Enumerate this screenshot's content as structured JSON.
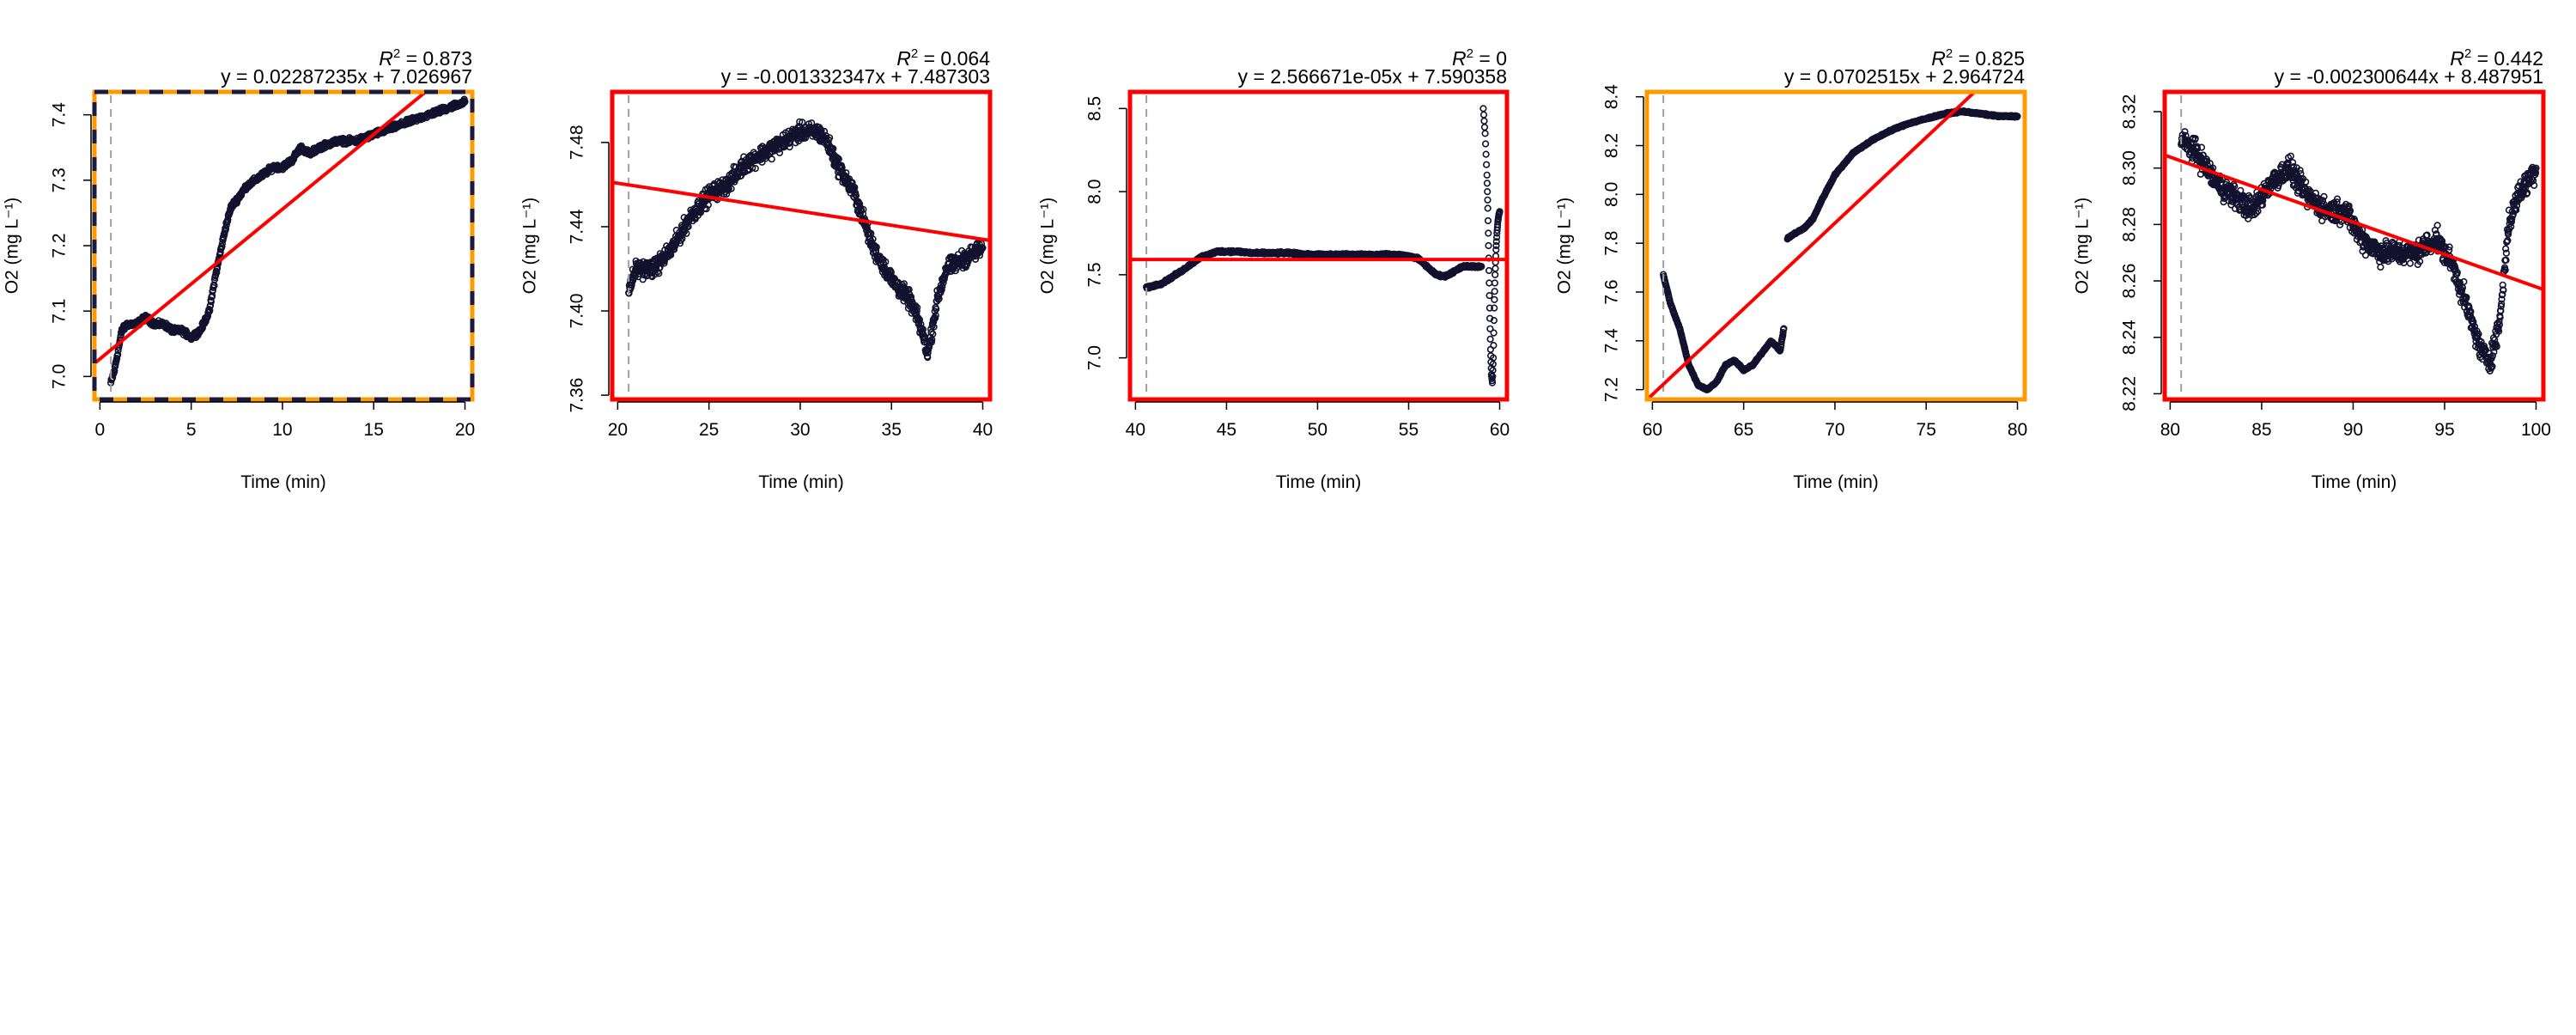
{
  "chart_data": [
    {
      "type": "scatter",
      "r2_label": "R",
      "r2_value": "= 0.873",
      "equation": "y = 0.02287235x + 7.026967",
      "xlabel": "Time (min)",
      "ylabel": "O2 (mg L⁻¹)",
      "xlim": [
        -0.3,
        20.4
      ],
      "ylim": [
        6.965,
        7.435
      ],
      "xticks": [
        0,
        5,
        10,
        15,
        20
      ],
      "yticks": [
        7.0,
        7.1,
        7.2,
        7.3,
        7.4
      ],
      "ytick_labels": [
        "7.0",
        "7.1",
        "7.2",
        "7.3",
        "7.4"
      ],
      "vline_x": 0.6,
      "frame_color": "#ff9900",
      "frame_style": "dashed",
      "fit": {
        "slope": 0.02287235,
        "intercept": 7.026967,
        "color": "#ff0000"
      },
      "series": [
        {
          "x": [
            0.6,
            0.8,
            1.0,
            1.2,
            1.5,
            2.0,
            2.5,
            3.0,
            3.5,
            4.0,
            4.5,
            5.0,
            5.5,
            6.0,
            6.3,
            6.6,
            6.9,
            7.2,
            7.5,
            8.0,
            8.5,
            9.0,
            9.5,
            10.0,
            10.5,
            11.0,
            11.5,
            12.0,
            13.0,
            14.0,
            15.0,
            16.0,
            17.0,
            18.0,
            19.0,
            20.0
          ],
          "y": [
            6.99,
            7.01,
            7.04,
            7.07,
            7.08,
            7.08,
            7.09,
            7.08,
            7.08,
            7.07,
            7.07,
            7.06,
            7.07,
            7.1,
            7.15,
            7.19,
            7.23,
            7.26,
            7.27,
            7.29,
            7.3,
            7.31,
            7.32,
            7.32,
            7.33,
            7.35,
            7.34,
            7.35,
            7.36,
            7.36,
            7.37,
            7.38,
            7.39,
            7.4,
            7.41,
            7.42
          ],
          "noise": 0.006
        }
      ]
    },
    {
      "type": "scatter",
      "r2_label": "R",
      "r2_value": "= 0.064",
      "equation": "y = -0.001332347x + 7.487303",
      "xlabel": "Time (min)",
      "ylabel": "O2 (mg L⁻¹)",
      "xlim": [
        19.7,
        40.4
      ],
      "ylim": [
        7.358,
        7.504
      ],
      "xticks": [
        20,
        25,
        30,
        35,
        40
      ],
      "yticks": [
        7.36,
        7.4,
        7.44,
        7.48
      ],
      "ytick_labels": [
        "7.36",
        "7.40",
        "7.44",
        "7.48"
      ],
      "vline_x": 20.6,
      "frame_color": "#ff0000",
      "frame_style": "solid",
      "fit": {
        "slope": -0.001332347,
        "intercept": 7.487303,
        "color": "#ff0000"
      },
      "series": [
        {
          "x": [
            20.6,
            21.0,
            22.0,
            23.0,
            24.0,
            25.0,
            26.0,
            27.0,
            28.0,
            29.0,
            30.0,
            31.0,
            31.5,
            32.0,
            33.0,
            34.0,
            35.0,
            36.0,
            36.5,
            37.0,
            37.5,
            38.0,
            39.0,
            40.0
          ],
          "y": [
            7.41,
            7.42,
            7.42,
            7.43,
            7.445,
            7.455,
            7.46,
            7.47,
            7.475,
            7.48,
            7.485,
            7.485,
            7.48,
            7.47,
            7.455,
            7.43,
            7.415,
            7.405,
            7.395,
            7.38,
            7.405,
            7.42,
            7.425,
            7.43
          ],
          "noise": 0.006
        }
      ]
    },
    {
      "type": "scatter",
      "r2_label": "R",
      "r2_value": "= 0",
      "equation": "y = 2.566671e-05x + 7.590358",
      "xlabel": "Time (min)",
      "ylabel": "O2 (mg L⁻¹)",
      "xlim": [
        39.7,
        60.4
      ],
      "ylim": [
        6.75,
        8.6
      ],
      "xticks": [
        40,
        45,
        50,
        55,
        60
      ],
      "yticks": [
        7.0,
        7.5,
        8.0,
        8.5
      ],
      "ytick_labels": [
        "7.0",
        "7.5",
        "8.0",
        "8.5"
      ],
      "vline_x": 40.6,
      "frame_color": "#ff0000",
      "frame_style": "solid",
      "fit": {
        "slope": 2.566671e-05,
        "intercept": 7.590358,
        "color": "#ff0000"
      },
      "series": [
        {
          "x": [
            40.6,
            41.5,
            42.5,
            43.5,
            44.5,
            45.5,
            46.5,
            47.5,
            48.5,
            49.5,
            50.5,
            51.5,
            52.5,
            53.5,
            54.5,
            55.5,
            56.0,
            56.5,
            57.0,
            57.5,
            58.0,
            58.5,
            59.0
          ],
          "y": [
            7.42,
            7.45,
            7.52,
            7.6,
            7.64,
            7.64,
            7.63,
            7.63,
            7.63,
            7.62,
            7.62,
            7.62,
            7.62,
            7.62,
            7.62,
            7.6,
            7.55,
            7.5,
            7.49,
            7.52,
            7.55,
            7.55,
            7.55
          ],
          "noise": 0.01
        },
        {
          "x": [
            59.1,
            59.2,
            59.3,
            59.35,
            59.4,
            59.45,
            59.5,
            59.55,
            59.6,
            59.65,
            59.7,
            59.75,
            59.8,
            59.85,
            59.9,
            59.95,
            60.0
          ],
          "y": [
            8.5,
            8.35,
            8.1,
            7.9,
            7.6,
            7.3,
            7.05,
            6.9,
            6.85,
            7.0,
            7.3,
            7.5,
            7.65,
            7.75,
            7.82,
            7.86,
            7.88
          ],
          "noise": 0.0
        }
      ]
    },
    {
      "type": "scatter",
      "r2_label": "R",
      "r2_value": "= 0.825",
      "equation": "y = 0.0702515x + 2.964724",
      "xlabel": "Time (min)",
      "ylabel": "O2 (mg L⁻¹)",
      "xlim": [
        59.7,
        80.4
      ],
      "ylim": [
        7.16,
        8.42
      ],
      "xticks": [
        60,
        65,
        70,
        75,
        80
      ],
      "yticks": [
        7.2,
        7.4,
        7.6,
        7.8,
        8.0,
        8.2,
        8.4
      ],
      "ytick_labels": [
        "7.2",
        "7.4",
        "7.6",
        "7.8",
        "8.0",
        "8.2",
        "8.4"
      ],
      "vline_x": 60.6,
      "frame_color": "#ff9900",
      "frame_style": "solid",
      "fit": {
        "slope": 0.0702515,
        "intercept": 2.964724,
        "color": "#ff0000"
      },
      "series": [
        {
          "x": [
            60.6,
            61.0,
            61.5,
            62.0,
            62.5,
            63.0,
            63.5,
            64.0,
            64.5,
            65.0,
            65.5,
            66.0,
            66.5,
            67.0,
            67.2
          ],
          "y": [
            7.67,
            7.55,
            7.45,
            7.3,
            7.22,
            7.2,
            7.23,
            7.3,
            7.32,
            7.28,
            7.3,
            7.35,
            7.4,
            7.36,
            7.45
          ],
          "noise": 0.005
        },
        {
          "x": [
            67.4,
            67.8,
            68.3,
            68.8,
            69.3,
            70.0,
            71.0,
            72.0,
            73.0,
            74.0,
            75.0,
            76.0,
            77.0,
            78.0,
            79.0,
            80.0
          ],
          "y": [
            7.82,
            7.84,
            7.86,
            7.9,
            7.98,
            8.08,
            8.17,
            8.22,
            8.26,
            8.29,
            8.31,
            8.33,
            8.34,
            8.33,
            8.32,
            8.32
          ],
          "noise": 0.005
        }
      ]
    },
    {
      "type": "scatter",
      "r2_label": "R",
      "r2_value": "= 0.442",
      "equation": "y = -0.002300644x + 8.487951",
      "xlabel": "Time (min)",
      "ylabel": "O2 (mg L⁻¹)",
      "xlim": [
        79.7,
        100.4
      ],
      "ylim": [
        8.218,
        8.327
      ],
      "xticks": [
        80,
        85,
        90,
        95,
        100
      ],
      "yticks": [
        8.22,
        8.24,
        8.26,
        8.28,
        8.3,
        8.32
      ],
      "ytick_labels": [
        "8.22",
        "8.24",
        "8.26",
        "8.28",
        "8.30",
        "8.32"
      ],
      "vline_x": 80.6,
      "frame_color": "#ff0000",
      "frame_style": "solid",
      "fit": {
        "slope": -0.002300644,
        "intercept": 8.487951,
        "color": "#ff0000"
      },
      "series": [
        {
          "x": [
            80.6,
            81.5,
            82.5,
            83.5,
            84.5,
            85.5,
            86.5,
            87.5,
            88.5,
            89.5,
            90.5,
            91.5,
            92.5,
            93.5,
            94.5,
            95.5,
            96.0,
            96.5,
            97.0,
            97.5,
            98.0,
            98.5,
            99.0,
            99.5,
            100.0
          ],
          "y": [
            8.31,
            8.305,
            8.295,
            8.29,
            8.285,
            8.295,
            8.3,
            8.29,
            8.285,
            8.285,
            8.275,
            8.27,
            8.27,
            8.27,
            8.275,
            8.265,
            8.255,
            8.245,
            8.235,
            8.232,
            8.245,
            8.28,
            8.29,
            8.295,
            8.3
          ],
          "noise": 0.006
        }
      ]
    }
  ]
}
